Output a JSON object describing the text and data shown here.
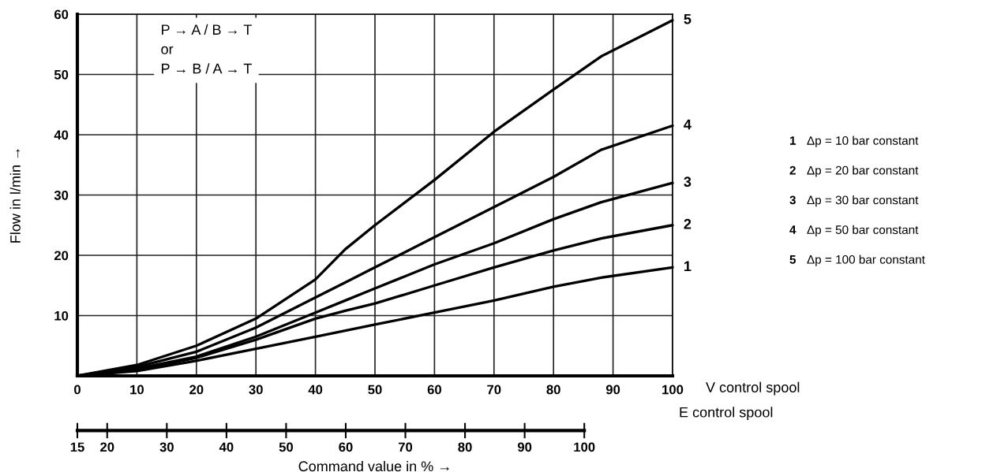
{
  "chart_data": {
    "type": "line",
    "ylabel": "Flow in l/min →",
    "xlabel": "Command value in % →",
    "x2label": "E control spool",
    "x": [
      0,
      10,
      20,
      30,
      40,
      45,
      50,
      60,
      70,
      80,
      88,
      100
    ],
    "series": [
      {
        "name": "1",
        "color": "#000000",
        "values": [
          0,
          0.8,
          2.5,
          4.5,
          6.5,
          7.5,
          8.5,
          10.5,
          12.5,
          14.8,
          16.3,
          18
        ]
      },
      {
        "name": "2",
        "color": "#000000",
        "values": [
          0,
          1,
          3,
          6,
          9.5,
          10.8,
          12,
          15,
          18,
          20.8,
          22.8,
          25
        ]
      },
      {
        "name": "3",
        "color": "#000000",
        "values": [
          0,
          1.2,
          3.2,
          6.5,
          10.5,
          12.5,
          14.5,
          18.5,
          22,
          26,
          28.8,
          32
        ]
      },
      {
        "name": "4",
        "color": "#000000",
        "values": [
          0,
          1.5,
          4,
          8,
          13,
          15.5,
          18,
          23,
          28,
          33,
          37.5,
          41.5
        ]
      },
      {
        "name": "5",
        "color": "#000000",
        "values": [
          0,
          1.8,
          5,
          9.5,
          16,
          21,
          25,
          32.5,
          40.5,
          47.5,
          53,
          59
        ]
      }
    ],
    "xlim": [
      0,
      100
    ],
    "ylim": [
      0,
      60
    ],
    "xticks": [
      0,
      10,
      20,
      30,
      40,
      50,
      60,
      70,
      80,
      90,
      100
    ],
    "yticks": [
      10,
      20,
      30,
      40,
      50,
      60
    ],
    "x2lim": [
      15,
      114.8
    ],
    "x2ticks": [
      15,
      20,
      30,
      40,
      50,
      60,
      70,
      80,
      90,
      100
    ],
    "grid": true,
    "legend": false,
    "marker": "none",
    "line_style": "solid",
    "annotations": [
      "P → A / B → T\nor\nP → B / A → T",
      "V control spool",
      "Δp = 10 bar constant",
      "Δp = 20 bar constant",
      "Δp = 30 bar constant",
      "Δp = 50 bar constant",
      "Δp = 100 bar constant"
    ]
  }
}
